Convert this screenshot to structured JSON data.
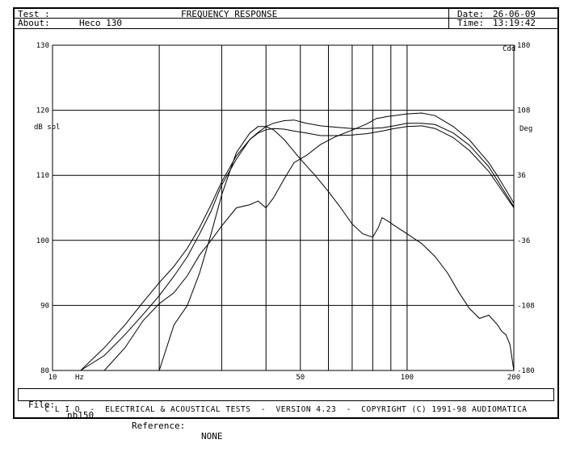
{
  "header": {
    "test_label": "Test :",
    "title": "FREQUENCY RESPONSE",
    "date_label": "Date:",
    "date_value": "26-06-09",
    "about_label": "About:",
    "about_value": "Heco 130",
    "time_label": "Time:",
    "time_value": "13:19:42"
  },
  "footer": {
    "file_label": "File:",
    "file_value": "nb150",
    "reference_label": "Reference:",
    "reference_value": "NONE",
    "credit": "C L I O  -  ELECTRICAL & ACOUSTICAL TESTS  -  VERSION 4.23  -  COPYRIGHT (C) 1991-98 AUDIOMATICA"
  },
  "chart_data": {
    "type": "line",
    "title": "FREQUENCY RESPONSE",
    "xlabel": "Hz",
    "ylabel": "dB spl",
    "y2label": "Deg",
    "y2unit": "Cdd",
    "x_scale": "log",
    "xlim": [
      10,
      200
    ],
    "ylim": [
      80,
      130
    ],
    "y2lim": [
      -180,
      180
    ],
    "x_tick_labels": [
      "10",
      "Hz",
      "50",
      "100",
      "200"
    ],
    "y_tick_labels": [
      "130",
      "120",
      "110",
      "100",
      "90",
      "80"
    ],
    "y2_tick_labels": [
      "180",
      "108",
      "36",
      "-36",
      "-108",
      "-180"
    ],
    "grid": true,
    "grid_x_values": [
      20,
      30,
      40,
      50,
      60,
      70,
      80,
      90,
      100
    ],
    "series": [
      {
        "axis": "left",
        "x": [
          12,
          14,
          16,
          18,
          20,
          22,
          24,
          26,
          28,
          30,
          33,
          36,
          38,
          40,
          42,
          45,
          48,
          52,
          57,
          63,
          70,
          77,
          85,
          92,
          100,
          110,
          120,
          135,
          150,
          170,
          200
        ],
        "y": [
          80.0,
          83.5,
          87.0,
          90.5,
          93.5,
          96.0,
          98.8,
          102.0,
          105.5,
          109.0,
          113.0,
          115.5,
          116.6,
          117.5,
          118.0,
          118.4,
          118.5,
          118.0,
          117.6,
          117.4,
          117.2,
          117.2,
          117.3,
          117.6,
          118.0,
          118.0,
          117.8,
          116.5,
          114.6,
          111.3,
          105.2
        ]
      },
      {
        "axis": "left",
        "x": [
          12,
          14,
          16,
          18,
          20,
          22,
          24,
          26,
          28,
          30,
          33,
          36,
          38,
          40,
          42,
          45,
          48,
          52,
          57,
          63,
          70,
          77,
          85,
          92,
          100,
          110,
          120,
          135,
          150,
          170,
          200
        ],
        "y": [
          80.0,
          82.3,
          85.5,
          88.6,
          91.5,
          94.5,
          97.5,
          101.0,
          104.5,
          108.5,
          112.5,
          115.5,
          116.5,
          117.0,
          117.2,
          117.1,
          116.8,
          116.5,
          116.1,
          116.1,
          116.2,
          116.4,
          116.8,
          117.2,
          117.5,
          117.6,
          117.2,
          115.8,
          113.8,
          110.6,
          105.0
        ]
      },
      {
        "axis": "right",
        "x": [
          14,
          16,
          18,
          20,
          22,
          24,
          26,
          28,
          30,
          33,
          36,
          38,
          40,
          42,
          45,
          48,
          52,
          57,
          63,
          70,
          77,
          82,
          85,
          88,
          92,
          100,
          110,
          120,
          135,
          150,
          160,
          170,
          180,
          190,
          200
        ],
        "y": [
          -180.0,
          -155.0,
          -125.0,
          -106.0,
          -94.0,
          -75.0,
          -52.0,
          -36.0,
          -20.0,
          0.0,
          3.5,
          7.5,
          0.0,
          11.0,
          32.0,
          50.0,
          58.0,
          70.0,
          79.0,
          86.0,
          93.0,
          99.0,
          100.0,
          101.0,
          102.0,
          104.0,
          105.0,
          102.0,
          90.0,
          75.0,
          62.0,
          50.0,
          35.0,
          20.0,
          5.0
        ]
      },
      {
        "axis": "left",
        "x": [
          20,
          22,
          24,
          26,
          28,
          30,
          33,
          36,
          38,
          40,
          42,
          45,
          50,
          55,
          60,
          65,
          70,
          75,
          80,
          83,
          85,
          88,
          92,
          100,
          110,
          120,
          130,
          140,
          150,
          160,
          170,
          180,
          185,
          190,
          195,
          200
        ],
        "y": [
          80.0,
          87.0,
          90.0,
          95.0,
          101.0,
          107.0,
          113.5,
          116.5,
          117.5,
          117.5,
          117.0,
          115.5,
          112.5,
          110.0,
          107.5,
          105.0,
          102.5,
          101.0,
          100.5,
          102.0,
          103.5,
          103.0,
          102.3,
          101.0,
          99.5,
          97.5,
          95.0,
          92.0,
          89.5,
          88.0,
          88.5,
          87.0,
          86.0,
          85.5,
          84.0,
          80.0
        ]
      }
    ]
  }
}
